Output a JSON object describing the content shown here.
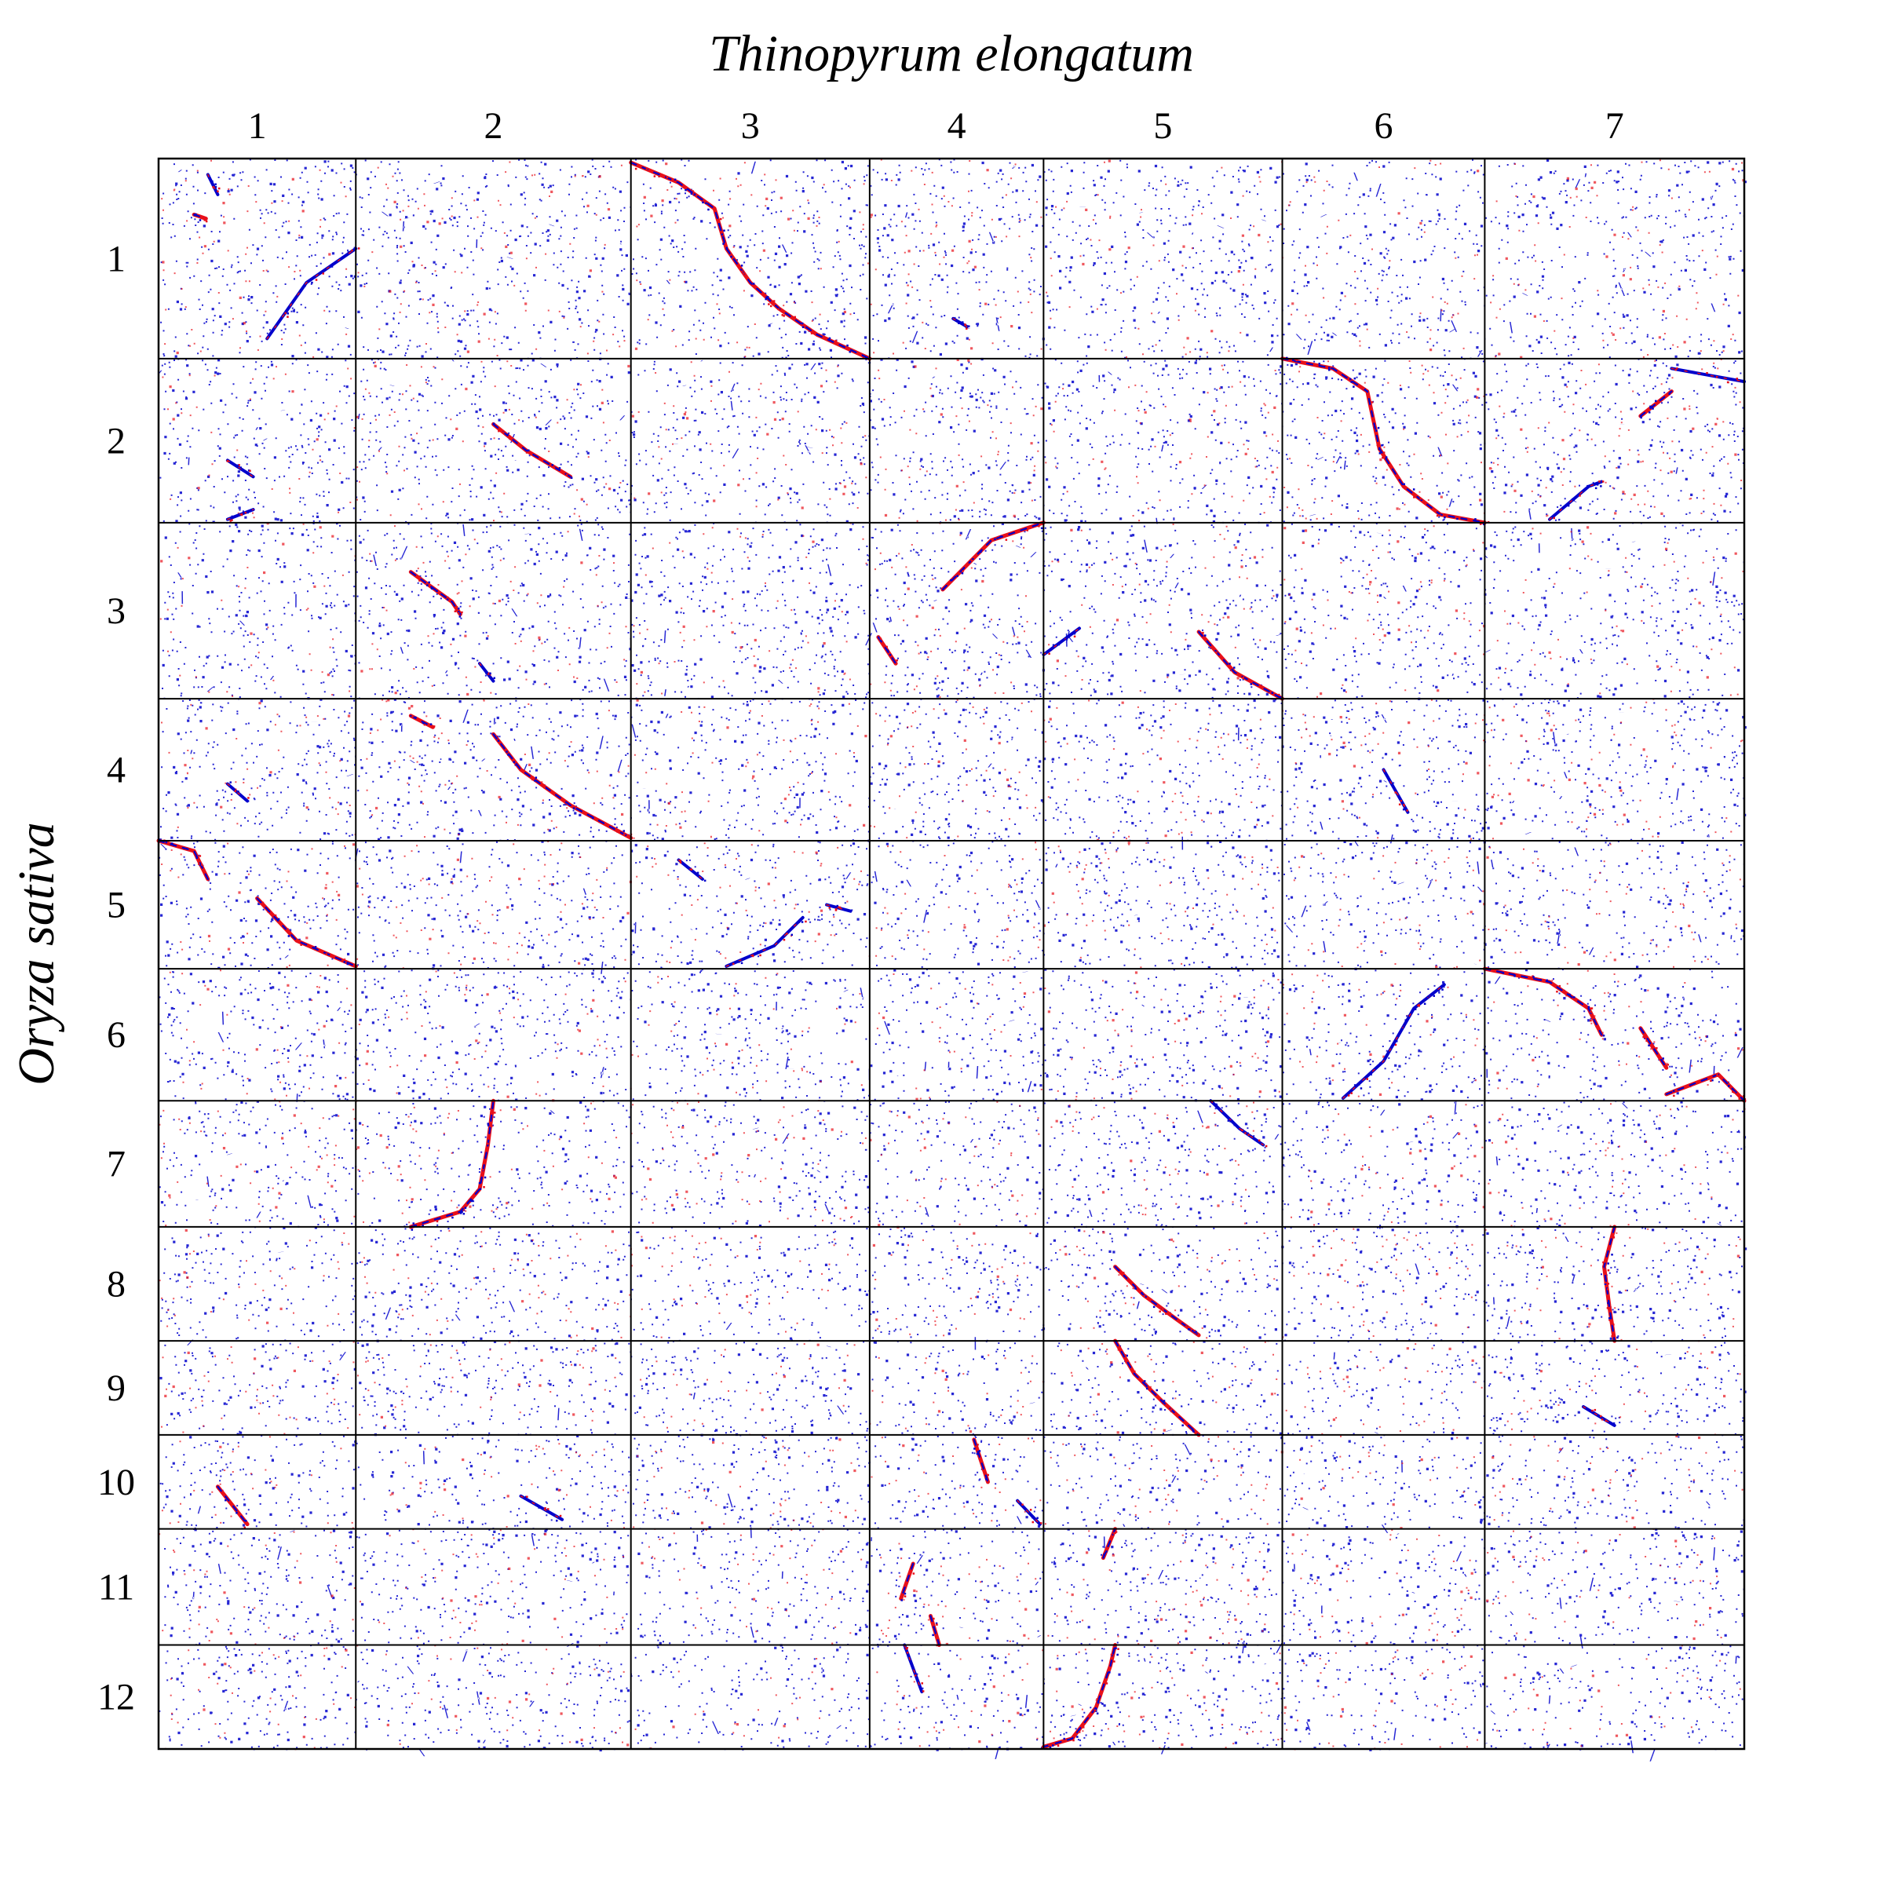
{
  "chart_data": {
    "type": "scatter",
    "subtype": "dot-plot",
    "xlabel": "Thinopyrum elongatum",
    "ylabel": "Oryza sativa",
    "x_chromosomes": [
      {
        "label": "1",
        "size": 0.76
      },
      {
        "label": "2",
        "size": 1.06
      },
      {
        "label": "3",
        "size": 0.92
      },
      {
        "label": "4",
        "size": 0.67
      },
      {
        "label": "5",
        "size": 0.92
      },
      {
        "label": "6",
        "size": 0.78
      },
      {
        "label": "7",
        "size": 1.0
      }
    ],
    "y_chromosomes": [
      {
        "label": "1",
        "size": 1.0
      },
      {
        "label": "2",
        "size": 0.82
      },
      {
        "label": "3",
        "size": 0.88
      },
      {
        "label": "4",
        "size": 0.71
      },
      {
        "label": "5",
        "size": 0.64
      },
      {
        "label": "6",
        "size": 0.66
      },
      {
        "label": "7",
        "size": 0.63
      },
      {
        "label": "8",
        "size": 0.57
      },
      {
        "label": "9",
        "size": 0.47
      },
      {
        "label": "10",
        "size": 0.47
      },
      {
        "label": "11",
        "size": 0.58
      },
      {
        "label": "12",
        "size": 0.52
      }
    ],
    "colors": {
      "forward": "#0000cc",
      "reverse": "#e8101a",
      "grid": "#000000"
    },
    "background_density": 0.9,
    "synteny_blocks": [
      {
        "x_chr": "1",
        "y_chr": "1",
        "points": [
          [
            0.25,
            0.08
          ],
          [
            0.3,
            0.18
          ]
        ],
        "color": "blue"
      },
      {
        "x_chr": "1",
        "y_chr": "1",
        "points": [
          [
            0.18,
            0.28
          ],
          [
            0.24,
            0.3
          ]
        ],
        "color": "mixed"
      },
      {
        "x_chr": "1",
        "y_chr": "1",
        "points": [
          [
            0.55,
            0.9
          ],
          [
            0.75,
            0.62
          ],
          [
            1.0,
            0.45
          ]
        ],
        "color": "blue"
      },
      {
        "x_chr": "3",
        "y_chr": "1",
        "points": [
          [
            0.0,
            0.02
          ],
          [
            0.2,
            0.12
          ],
          [
            0.35,
            0.25
          ],
          [
            0.4,
            0.45
          ],
          [
            0.5,
            0.62
          ],
          [
            0.62,
            0.75
          ],
          [
            0.78,
            0.88
          ],
          [
            1.0,
            1.0
          ]
        ],
        "color": "mixed"
      },
      {
        "x_chr": "4",
        "y_chr": "1",
        "points": [
          [
            0.48,
            0.8
          ],
          [
            0.56,
            0.84
          ]
        ],
        "color": "blue"
      },
      {
        "x_chr": "1",
        "y_chr": "2",
        "points": [
          [
            0.35,
            0.62
          ],
          [
            0.48,
            0.72
          ]
        ],
        "color": "blue"
      },
      {
        "x_chr": "1",
        "y_chr": "2",
        "points": [
          [
            0.35,
            0.98
          ],
          [
            0.48,
            0.92
          ]
        ],
        "color": "blue"
      },
      {
        "x_chr": "2",
        "y_chr": "2",
        "points": [
          [
            0.5,
            0.4
          ],
          [
            0.62,
            0.56
          ],
          [
            0.78,
            0.72
          ]
        ],
        "color": "mixed"
      },
      {
        "x_chr": "6",
        "y_chr": "2",
        "points": [
          [
            0.0,
            0.0
          ],
          [
            0.25,
            0.06
          ],
          [
            0.42,
            0.2
          ],
          [
            0.48,
            0.55
          ],
          [
            0.6,
            0.78
          ],
          [
            0.78,
            0.95
          ],
          [
            1.0,
            1.0
          ]
        ],
        "color": "mixed"
      },
      {
        "x_chr": "7",
        "y_chr": "2",
        "points": [
          [
            0.25,
            0.98
          ],
          [
            0.4,
            0.78
          ],
          [
            0.45,
            0.75
          ]
        ],
        "color": "blue"
      },
      {
        "x_chr": "7",
        "y_chr": "2",
        "points": [
          [
            0.6,
            0.35
          ],
          [
            0.72,
            0.2
          ]
        ],
        "color": "mixed"
      },
      {
        "x_chr": "7",
        "y_chr": "2",
        "points": [
          [
            0.72,
            0.06
          ],
          [
            1.0,
            0.14
          ]
        ],
        "color": "blue"
      },
      {
        "x_chr": "2",
        "y_chr": "3",
        "points": [
          [
            0.2,
            0.28
          ],
          [
            0.35,
            0.45
          ],
          [
            0.38,
            0.52
          ]
        ],
        "color": "mixed"
      },
      {
        "x_chr": "2",
        "y_chr": "3",
        "points": [
          [
            0.45,
            0.8
          ],
          [
            0.5,
            0.9
          ]
        ],
        "color": "blue"
      },
      {
        "x_chr": "4",
        "y_chr": "3",
        "points": [
          [
            0.05,
            0.65
          ],
          [
            0.15,
            0.8
          ]
        ],
        "color": "mixed"
      },
      {
        "x_chr": "4",
        "y_chr": "3",
        "points": [
          [
            0.42,
            0.38
          ],
          [
            0.7,
            0.1
          ],
          [
            1.0,
            0.0
          ]
        ],
        "color": "mixed"
      },
      {
        "x_chr": "5",
        "y_chr": "3",
        "points": [
          [
            0.0,
            0.75
          ],
          [
            0.15,
            0.6
          ]
        ],
        "color": "blue"
      },
      {
        "x_chr": "5",
        "y_chr": "3",
        "points": [
          [
            0.65,
            0.62
          ],
          [
            0.8,
            0.85
          ],
          [
            1.0,
            1.0
          ]
        ],
        "color": "mixed"
      },
      {
        "x_chr": "1",
        "y_chr": "4",
        "points": [
          [
            0.35,
            0.6
          ],
          [
            0.45,
            0.72
          ]
        ],
        "color": "blue"
      },
      {
        "x_chr": "2",
        "y_chr": "4",
        "points": [
          [
            0.2,
            0.12
          ],
          [
            0.28,
            0.2
          ]
        ],
        "color": "mixed"
      },
      {
        "x_chr": "2",
        "y_chr": "4",
        "points": [
          [
            0.5,
            0.25
          ],
          [
            0.6,
            0.5
          ],
          [
            0.78,
            0.75
          ],
          [
            1.0,
            0.98
          ]
        ],
        "color": "mixed"
      },
      {
        "x_chr": "6",
        "y_chr": "4",
        "points": [
          [
            0.5,
            0.5
          ],
          [
            0.62,
            0.8
          ]
        ],
        "color": "blue"
      },
      {
        "x_chr": "1",
        "y_chr": "5",
        "points": [
          [
            0.0,
            0.0
          ],
          [
            0.18,
            0.08
          ],
          [
            0.25,
            0.3
          ]
        ],
        "color": "mixed"
      },
      {
        "x_chr": "1",
        "y_chr": "5",
        "points": [
          [
            0.5,
            0.45
          ],
          [
            0.7,
            0.78
          ],
          [
            1.0,
            0.98
          ]
        ],
        "color": "mixed"
      },
      {
        "x_chr": "3",
        "y_chr": "5",
        "points": [
          [
            0.2,
            0.15
          ],
          [
            0.3,
            0.3
          ]
        ],
        "color": "blue"
      },
      {
        "x_chr": "3",
        "y_chr": "5",
        "points": [
          [
            0.4,
            0.98
          ],
          [
            0.6,
            0.82
          ],
          [
            0.72,
            0.6
          ]
        ],
        "color": "blue"
      },
      {
        "x_chr": "3",
        "y_chr": "5",
        "points": [
          [
            0.82,
            0.5
          ],
          [
            0.92,
            0.55
          ]
        ],
        "color": "blue"
      },
      {
        "x_chr": "6",
        "y_chr": "6",
        "points": [
          [
            0.3,
            0.98
          ],
          [
            0.5,
            0.7
          ],
          [
            0.65,
            0.3
          ],
          [
            0.8,
            0.12
          ]
        ],
        "color": "blue"
      },
      {
        "x_chr": "7",
        "y_chr": "6",
        "points": [
          [
            0.0,
            0.0
          ],
          [
            0.25,
            0.1
          ],
          [
            0.4,
            0.3
          ],
          [
            0.45,
            0.5
          ]
        ],
        "color": "mixed"
      },
      {
        "x_chr": "7",
        "y_chr": "6",
        "points": [
          [
            0.6,
            0.45
          ],
          [
            0.7,
            0.75
          ]
        ],
        "color": "mixed"
      },
      {
        "x_chr": "7",
        "y_chr": "6",
        "points": [
          [
            0.7,
            0.95
          ],
          [
            0.9,
            0.8
          ],
          [
            1.0,
            1.0
          ]
        ],
        "color": "mixed"
      },
      {
        "x_chr": "2",
        "y_chr": "7",
        "points": [
          [
            0.2,
            1.0
          ],
          [
            0.38,
            0.88
          ],
          [
            0.45,
            0.7
          ],
          [
            0.48,
            0.35
          ],
          [
            0.5,
            0.0
          ]
        ],
        "color": "mixed"
      },
      {
        "x_chr": "5",
        "y_chr": "7",
        "points": [
          [
            0.7,
            0.0
          ],
          [
            0.82,
            0.22
          ],
          [
            0.92,
            0.35
          ]
        ],
        "color": "blue"
      },
      {
        "x_chr": "5",
        "y_chr": "8",
        "points": [
          [
            0.3,
            0.35
          ],
          [
            0.42,
            0.6
          ],
          [
            0.55,
            0.8
          ],
          [
            0.65,
            0.95
          ]
        ],
        "color": "mixed"
      },
      {
        "x_chr": "7",
        "y_chr": "8",
        "points": [
          [
            0.5,
            0.0
          ],
          [
            0.46,
            0.35
          ],
          [
            0.48,
            0.7
          ],
          [
            0.5,
            1.0
          ]
        ],
        "color": "mixed"
      },
      {
        "x_chr": "5",
        "y_chr": "9",
        "points": [
          [
            0.3,
            0.0
          ],
          [
            0.38,
            0.35
          ],
          [
            0.5,
            0.65
          ],
          [
            0.65,
            1.0
          ]
        ],
        "color": "mixed"
      },
      {
        "x_chr": "7",
        "y_chr": "9",
        "points": [
          [
            0.38,
            0.7
          ],
          [
            0.5,
            0.9
          ]
        ],
        "color": "blue"
      },
      {
        "x_chr": "1",
        "y_chr": "10",
        "points": [
          [
            0.3,
            0.55
          ],
          [
            0.45,
            0.95
          ]
        ],
        "color": "mixed"
      },
      {
        "x_chr": "2",
        "y_chr": "10",
        "points": [
          [
            0.6,
            0.65
          ],
          [
            0.75,
            0.9
          ]
        ],
        "color": "blue"
      },
      {
        "x_chr": "4",
        "y_chr": "10",
        "points": [
          [
            0.6,
            0.05
          ],
          [
            0.68,
            0.5
          ]
        ],
        "color": "mixed"
      },
      {
        "x_chr": "4",
        "y_chr": "10",
        "points": [
          [
            0.85,
            0.7
          ],
          [
            0.98,
            0.95
          ]
        ],
        "color": "blue"
      },
      {
        "x_chr": "4",
        "y_chr": "11",
        "points": [
          [
            0.25,
            0.3
          ],
          [
            0.18,
            0.6
          ]
        ],
        "color": "mixed"
      },
      {
        "x_chr": "4",
        "y_chr": "11",
        "points": [
          [
            0.35,
            0.75
          ],
          [
            0.4,
            1.0
          ]
        ],
        "color": "mixed"
      },
      {
        "x_chr": "5",
        "y_chr": "11",
        "points": [
          [
            0.25,
            0.25
          ],
          [
            0.3,
            0.0
          ]
        ],
        "color": "mixed"
      },
      {
        "x_chr": "4",
        "y_chr": "12",
        "points": [
          [
            0.2,
            0.0
          ],
          [
            0.3,
            0.45
          ]
        ],
        "color": "blue"
      },
      {
        "x_chr": "5",
        "y_chr": "12",
        "points": [
          [
            0.0,
            0.98
          ],
          [
            0.12,
            0.9
          ],
          [
            0.22,
            0.6
          ],
          [
            0.28,
            0.2
          ],
          [
            0.3,
            0.0
          ]
        ],
        "color": "mixed"
      }
    ]
  }
}
